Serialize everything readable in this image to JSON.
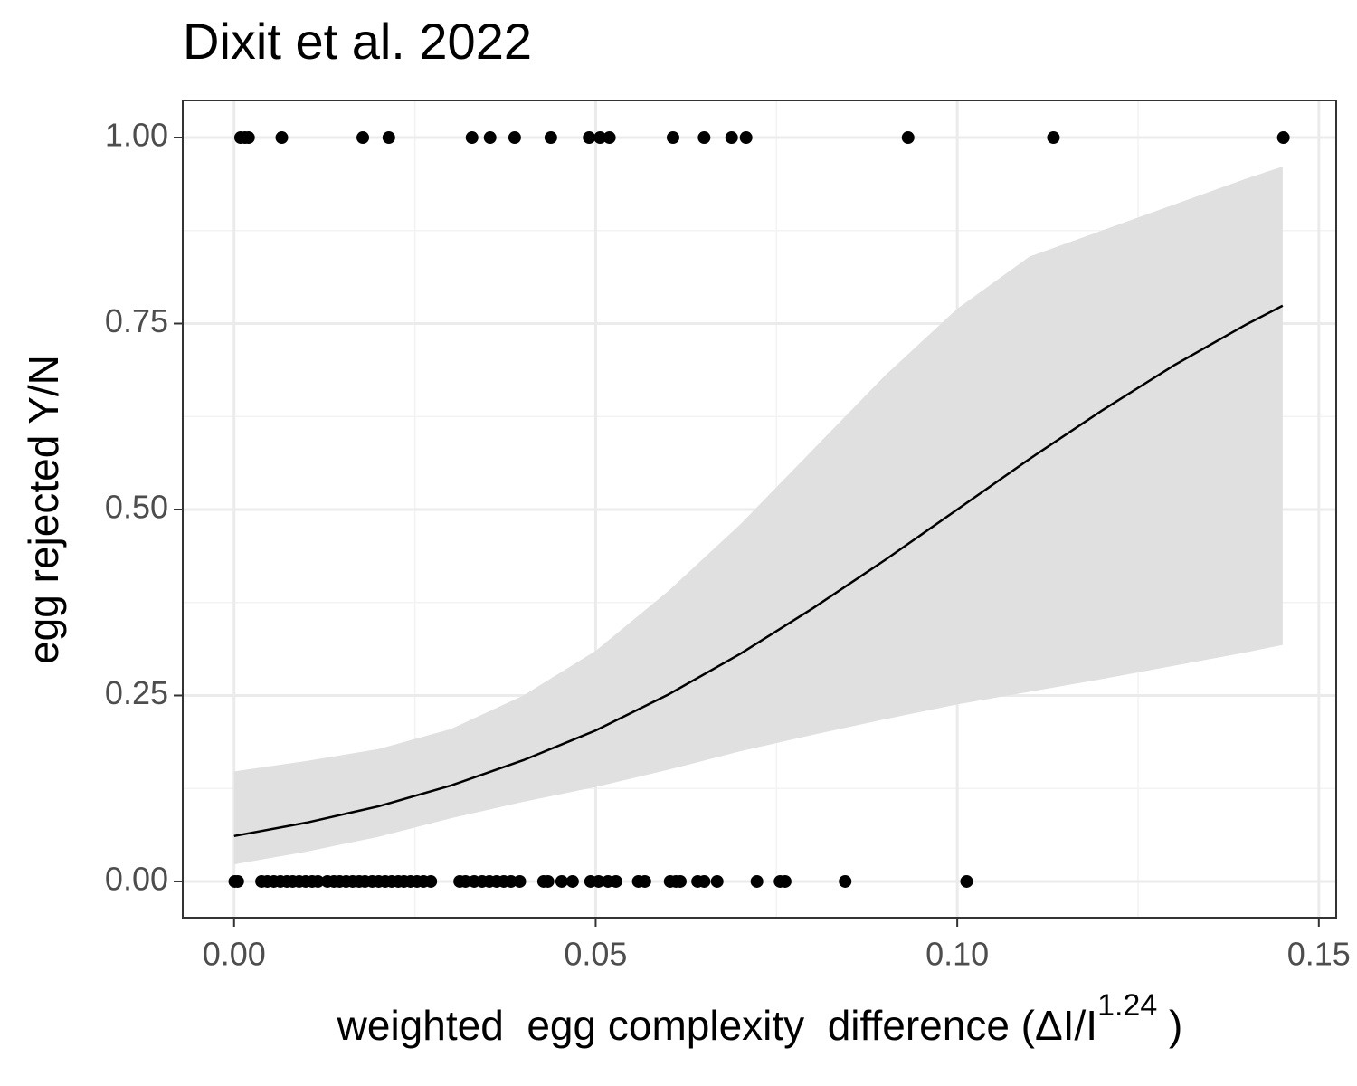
{
  "chart_data": {
    "type": "scatter",
    "title": "Dixit et al. 2022",
    "xlabel": [
      "weighted  egg complexity  difference (ΔI/I",
      "1.24",
      " )"
    ],
    "ylabel": "egg rejected Y/N",
    "xlim": [
      -0.0071,
      0.1524
    ],
    "ylim": [
      -0.0487,
      1.0499
    ],
    "xticks": [
      {
        "value": 0,
        "label": "0.00"
      },
      0.05,
      {
        "value": 0.1,
        "label": "0.10"
      },
      0.15
    ],
    "yticks": [
      {
        "value": 0,
        "label": "0.00"
      },
      0.25,
      {
        "value": 0.5,
        "label": "0.50"
      },
      0.75,
      {
        "value": 1,
        "label": "1.00"
      }
    ],
    "xminor": [
      0.025,
      0.075,
      0.125
    ],
    "yminor": [
      0.125,
      0.375,
      0.625,
      0.875
    ],
    "grid": true,
    "point_color": "#000000",
    "line_color": "#000000",
    "ribbon_color": "#e0e0e0",
    "points": {
      "x": [
        0.0009,
        0.0015,
        0.002,
        0.0066,
        0.0178,
        0.0214,
        0.0329,
        0.0354,
        0.0388,
        0.0438,
        0.0491,
        0.0506,
        0.0519,
        0.0607,
        0.065,
        0.0688,
        0.0708,
        0.0932,
        0.1133,
        0.1451,
        0.0001,
        0.0005,
        0.0038,
        0.0046,
        0.0055,
        0.0064,
        0.0073,
        0.0081,
        0.009,
        0.0099,
        0.0108,
        0.0116,
        0.0129,
        0.0138,
        0.0146,
        0.0155,
        0.0164,
        0.0173,
        0.0181,
        0.0191,
        0.02,
        0.0209,
        0.0218,
        0.0227,
        0.0235,
        0.0244,
        0.0253,
        0.0262,
        0.0272,
        0.0312,
        0.032,
        0.0332,
        0.0343,
        0.0353,
        0.0363,
        0.0373,
        0.0383,
        0.0395,
        0.0428,
        0.0434,
        0.0453,
        0.0468,
        0.0493,
        0.0504,
        0.0517,
        0.0528,
        0.0559,
        0.0568,
        0.0603,
        0.0611,
        0.0617,
        0.0641,
        0.065,
        0.0668,
        0.0723,
        0.0755,
        0.0762,
        0.0845,
        0.1013
      ],
      "y": [
        1,
        1,
        1,
        1,
        1,
        1,
        1,
        1,
        1,
        1,
        1,
        1,
        1,
        1,
        1,
        1,
        1,
        1,
        1,
        1,
        0,
        0,
        0,
        0,
        0,
        0,
        0,
        0,
        0,
        0,
        0,
        0,
        0,
        0,
        0,
        0,
        0,
        0,
        0,
        0,
        0,
        0,
        0,
        0,
        0,
        0,
        0,
        0,
        0,
        0,
        0,
        0,
        0,
        0,
        0,
        0,
        0,
        0,
        0,
        0,
        0,
        0,
        0,
        0,
        0,
        0,
        0,
        0,
        0,
        0,
        0,
        0,
        0,
        0,
        0,
        0,
        0,
        0,
        0
      ]
    },
    "fit": {
      "x": [
        0,
        0.01,
        0.02,
        0.03,
        0.04,
        0.05,
        0.06,
        0.07,
        0.08,
        0.09,
        0.1,
        0.11,
        0.12,
        0.13,
        0.14,
        0.145
      ],
      "y": [
        0.061,
        0.079,
        0.101,
        0.129,
        0.163,
        0.203,
        0.251,
        0.306,
        0.367,
        0.432,
        0.5,
        0.568,
        0.633,
        0.694,
        0.749,
        0.774
      ],
      "upper": [
        0.148,
        0.162,
        0.178,
        0.205,
        0.25,
        0.31,
        0.39,
        0.48,
        0.58,
        0.68,
        0.77,
        0.84,
        0.875,
        0.91,
        0.945,
        0.961
      ],
      "lower": [
        0.023,
        0.04,
        0.06,
        0.085,
        0.107,
        0.127,
        0.15,
        0.175,
        0.197,
        0.218,
        0.238,
        0.255,
        0.272,
        0.29,
        0.308,
        0.318
      ]
    }
  }
}
